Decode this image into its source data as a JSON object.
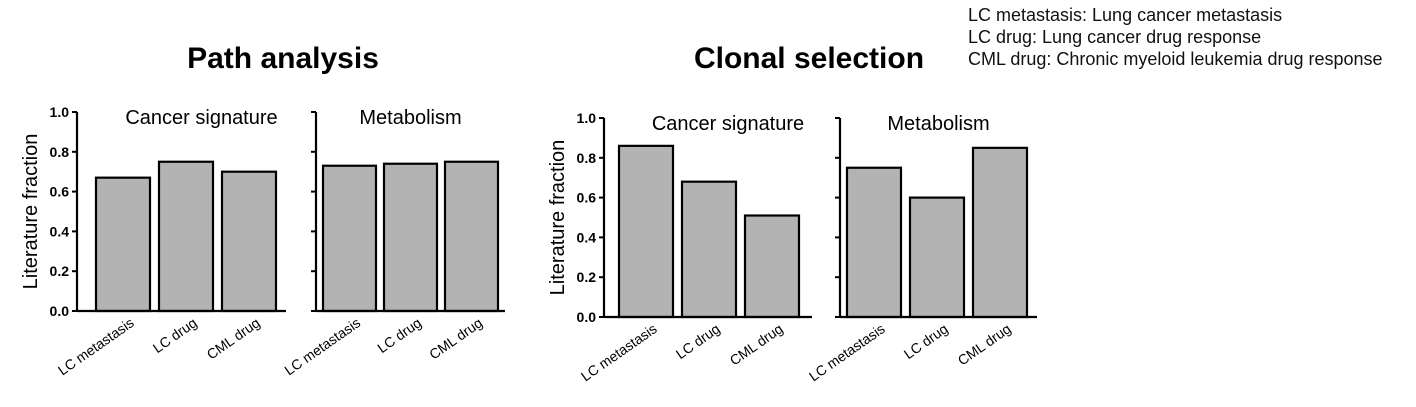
{
  "legend_note": {
    "line1": "LC metastasis: Lung cancer metastasis",
    "line2": "LC drug: Lung cancer drug response",
    "line3": "CML drug: Chronic myeloid leukemia drug response"
  },
  "colors": {
    "bar_fill": "#b3b3b3",
    "bar_stroke": "#000000"
  },
  "chart_data": [
    {
      "type": "bar",
      "panel": "Path analysis",
      "title": "Cancer signature",
      "ylabel": "Literature fraction",
      "xlabel": "",
      "categories": [
        "LC metastasis",
        "LC drug",
        "CML drug"
      ],
      "values": [
        0.67,
        0.75,
        0.7
      ],
      "ylim": [
        0,
        1.0
      ],
      "yticks": [
        "0.0",
        "0.2",
        "0.4",
        "0.6",
        "0.8",
        "1.0"
      ],
      "grid": false
    },
    {
      "type": "bar",
      "panel": "Path analysis",
      "title": "Metabolism",
      "ylabel": "",
      "xlabel": "",
      "categories": [
        "LC metastasis",
        "LC drug",
        "CML drug"
      ],
      "values": [
        0.73,
        0.74,
        0.75
      ],
      "ylim": [
        0,
        1.0
      ],
      "yticks": [],
      "grid": false
    },
    {
      "type": "bar",
      "panel": "Clonal selection",
      "title": "Cancer signature",
      "ylabel": "Literature fraction",
      "xlabel": "",
      "categories": [
        "LC metastasis",
        "LC drug",
        "CML drug"
      ],
      "values": [
        0.86,
        0.68,
        0.51
      ],
      "ylim": [
        0,
        1.0
      ],
      "yticks": [
        "0.0",
        "0.2",
        "0.4",
        "0.6",
        "0.8",
        "1.0"
      ],
      "grid": false
    },
    {
      "type": "bar",
      "panel": "Clonal selection",
      "title": "Metabolism",
      "ylabel": "",
      "xlabel": "",
      "categories": [
        "LC metastasis",
        "LC drug",
        "CML drug"
      ],
      "values": [
        0.75,
        0.6,
        0.85
      ],
      "ylim": [
        0,
        1.0
      ],
      "yticks": [],
      "grid": false
    }
  ],
  "panel_titles": [
    "Path analysis",
    "Clonal selection"
  ]
}
